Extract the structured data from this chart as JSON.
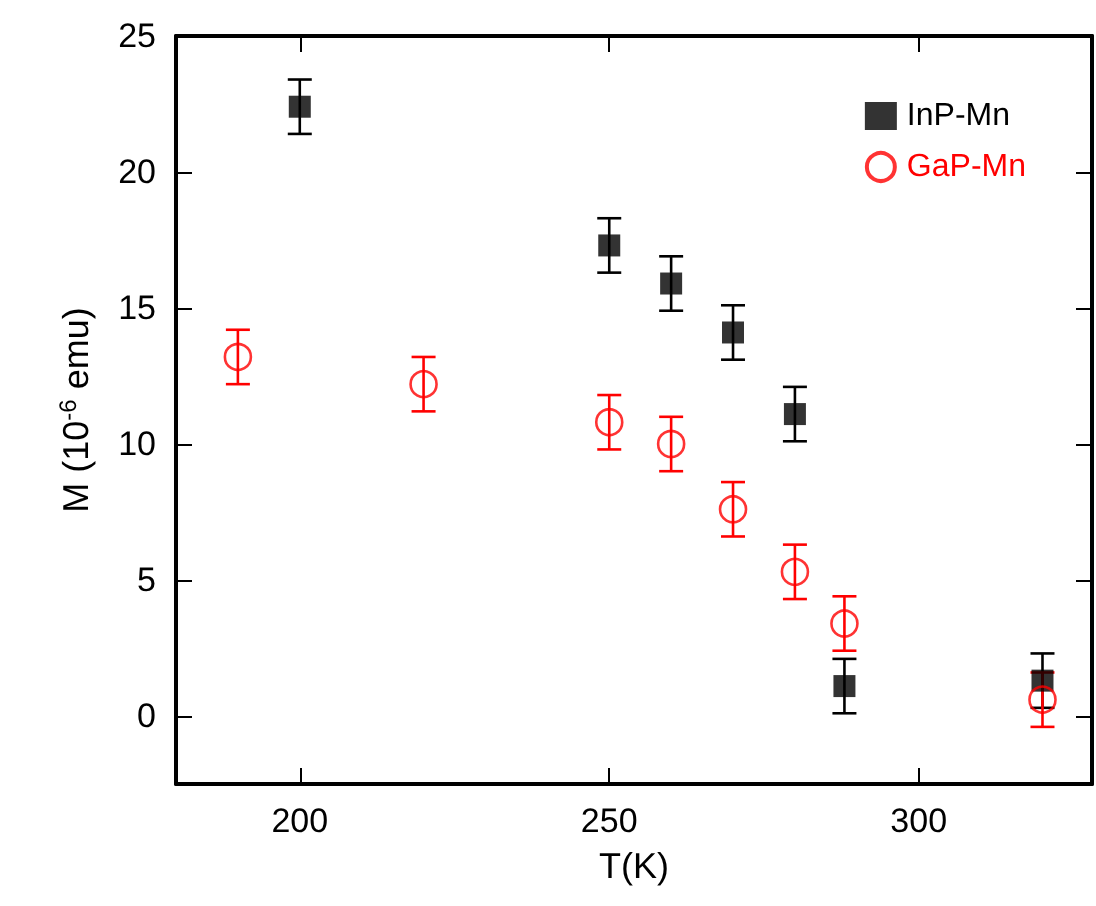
{
  "chart_data": {
    "type": "scatter",
    "xlabel": "T(K)",
    "ylabel": "M (10$^{-6}$ emu)",
    "xlim": [
      180,
      328
    ],
    "xticks": [
      200,
      250,
      300
    ],
    "ylim": [
      -2.5,
      25
    ],
    "yticks": [
      0,
      5,
      10,
      15,
      20,
      25
    ],
    "grid": false,
    "legend": "top right",
    "series": [
      {
        "name": "InP-Mn",
        "color": "#000000",
        "marker": "square",
        "x": [
          200,
          250,
          260,
          270,
          280,
          288,
          320
        ],
        "values": [
          22.4,
          17.3,
          15.9,
          14.1,
          11.1,
          1.1,
          1.3
        ],
        "errors": [
          1,
          1,
          1,
          1,
          1,
          1,
          1
        ]
      },
      {
        "name": "GaP-Mn",
        "color": "#ff0000",
        "marker": "circle",
        "x": [
          190,
          220,
          250,
          260,
          270,
          280,
          288,
          320
        ],
        "values": [
          13.2,
          12.2,
          10.8,
          10.0,
          7.6,
          5.3,
          3.4,
          0.6
        ],
        "errors": [
          1,
          1,
          1,
          1,
          1,
          1,
          1,
          1
        ]
      }
    ]
  }
}
